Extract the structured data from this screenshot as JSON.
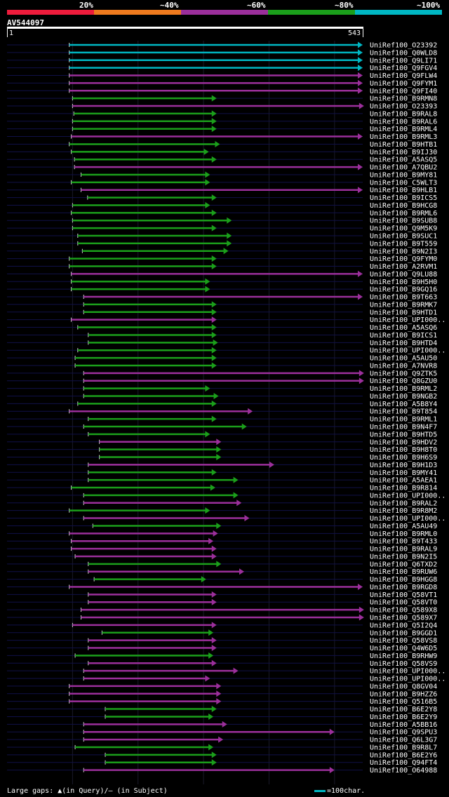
{
  "legend": {
    "labels": [
      "20%",
      "~40%",
      "~60%",
      "~80%",
      "~100%"
    ],
    "colors": [
      "#ee1c3c",
      "#ee7a1e",
      "#9b2f9b",
      "#1b9f1b",
      "#00b7c3"
    ]
  },
  "query": {
    "id": "AV544097",
    "start": "1",
    "end": "543"
  },
  "footer": {
    "gaps_text": "Large gaps: ▲(in Query)/– (in Subject)",
    "scale_text": "=100char."
  },
  "chart_data": {
    "type": "alignment",
    "query_length": 543,
    "hits": [
      {
        "name": "UniRef100_O23392",
        "start": 95,
        "end": 543,
        "cat": "top"
      },
      {
        "name": "UniRef100_Q0WLD8",
        "start": 95,
        "end": 543,
        "cat": "top"
      },
      {
        "name": "UniRef100_Q9LI71",
        "start": 95,
        "end": 543,
        "cat": "top"
      },
      {
        "name": "UniRef100_Q9FGV4",
        "start": 95,
        "end": 543,
        "cat": "top"
      },
      {
        "name": "UniRef100_Q9FLW4",
        "start": 95,
        "end": 543,
        "cat": "mid"
      },
      {
        "name": "UniRef100_Q9FYM1",
        "start": 95,
        "end": 543,
        "cat": "mid"
      },
      {
        "name": "UniRef100_Q9FI40",
        "start": 95,
        "end": 543,
        "cat": "mid"
      },
      {
        "name": "UniRef100_B9RMN8",
        "start": 100,
        "end": 320,
        "cat": "low"
      },
      {
        "name": "UniRef100_O23393",
        "start": 100,
        "end": 545,
        "cat": "mid"
      },
      {
        "name": "UniRef100_B9RAL8",
        "start": 102,
        "end": 320,
        "cat": "low"
      },
      {
        "name": "UniRef100_B9RAL6",
        "start": 100,
        "end": 320,
        "cat": "low"
      },
      {
        "name": "UniRef100_B9RML4",
        "start": 100,
        "end": 320,
        "cat": "low"
      },
      {
        "name": "UniRef100_B9RML3",
        "start": 98,
        "end": 543,
        "cat": "mid"
      },
      {
        "name": "UniRef100_B9HTB1",
        "start": 95,
        "end": 325,
        "cat": "low"
      },
      {
        "name": "UniRef100_B9IJ30",
        "start": 98,
        "end": 308,
        "cat": "low"
      },
      {
        "name": "UniRef100_A5ASQ5",
        "start": 103,
        "end": 320,
        "cat": "low"
      },
      {
        "name": "UniRef100_A7QBU2",
        "start": 103,
        "end": 543,
        "cat": "mid"
      },
      {
        "name": "UniRef100_B9MY81",
        "start": 113,
        "end": 310,
        "cat": "low"
      },
      {
        "name": "UniRef100_C5WLT3",
        "start": 98,
        "end": 310,
        "cat": "low"
      },
      {
        "name": "UniRef100_B9HLB1",
        "start": 113,
        "end": 543,
        "cat": "mid"
      },
      {
        "name": "UniRef100_B9ICS5",
        "start": 123,
        "end": 320,
        "cat": "low"
      },
      {
        "name": "UniRef100_B9HCG8",
        "start": 100,
        "end": 310,
        "cat": "low"
      },
      {
        "name": "UniRef100_B9RML6",
        "start": 98,
        "end": 320,
        "cat": "low"
      },
      {
        "name": "UniRef100_B9SUB8",
        "start": 100,
        "end": 343,
        "cat": "low"
      },
      {
        "name": "UniRef100_Q9M5K9",
        "start": 100,
        "end": 320,
        "cat": "low"
      },
      {
        "name": "UniRef100_B9SUC1",
        "start": 108,
        "end": 343,
        "cat": "low"
      },
      {
        "name": "UniRef100_B9T559",
        "start": 108,
        "end": 343,
        "cat": "low"
      },
      {
        "name": "UniRef100_B9N2I3",
        "start": 115,
        "end": 338,
        "cat": "low"
      },
      {
        "name": "UniRef100_Q9FYM0",
        "start": 95,
        "end": 320,
        "cat": "low"
      },
      {
        "name": "UniRef100_A2RVM1",
        "start": 95,
        "end": 320,
        "cat": "low"
      },
      {
        "name": "UniRef100_Q9LU88",
        "start": 98,
        "end": 543,
        "cat": "mid"
      },
      {
        "name": "UniRef100_B9H5H0",
        "start": 98,
        "end": 310,
        "cat": "low"
      },
      {
        "name": "UniRef100_B9GQ16",
        "start": 98,
        "end": 310,
        "cat": "low"
      },
      {
        "name": "UniRef100_B9T663",
        "start": 117,
        "end": 543,
        "cat": "mid"
      },
      {
        "name": "UniRef100_B9RMK7",
        "start": 117,
        "end": 320,
        "cat": "low"
      },
      {
        "name": "UniRef100_B9HTD1",
        "start": 117,
        "end": 320,
        "cat": "low"
      },
      {
        "name": "UniRef100_UPI000..",
        "start": 98,
        "end": 320,
        "cat": "mid"
      },
      {
        "name": "UniRef100_A5ASQ6",
        "start": 108,
        "end": 320,
        "cat": "low"
      },
      {
        "name": "UniRef100_B9ICS1",
        "start": 124,
        "end": 320,
        "cat": "low"
      },
      {
        "name": "UniRef100_B9HTD4",
        "start": 124,
        "end": 322,
        "cat": "low"
      },
      {
        "name": "UniRef100_UPI000..",
        "start": 108,
        "end": 320,
        "cat": "low"
      },
      {
        "name": "UniRef100_A5AU50",
        "start": 104,
        "end": 320,
        "cat": "low"
      },
      {
        "name": "UniRef100_A7NVR8",
        "start": 104,
        "end": 320,
        "cat": "low"
      },
      {
        "name": "UniRef100_Q9ZTK5",
        "start": 117,
        "end": 545,
        "cat": "mid"
      },
      {
        "name": "UniRef100_Q8GZU0",
        "start": 117,
        "end": 545,
        "cat": "mid"
      },
      {
        "name": "UniRef100_B9RML2",
        "start": 117,
        "end": 310,
        "cat": "low"
      },
      {
        "name": "UniRef100_B9NGB2",
        "start": 117,
        "end": 323,
        "cat": "low"
      },
      {
        "name": "UniRef100_A5B8Y4",
        "start": 108,
        "end": 320,
        "cat": "low"
      },
      {
        "name": "UniRef100_B9T854",
        "start": 95,
        "end": 375,
        "cat": "mid"
      },
      {
        "name": "UniRef100_B9RML1",
        "start": 124,
        "end": 320,
        "cat": "low"
      },
      {
        "name": "UniRef100_B9N4F7",
        "start": 117,
        "end": 366,
        "cat": "low"
      },
      {
        "name": "UniRef100_B9HTD5",
        "start": 124,
        "end": 310,
        "cat": "low"
      },
      {
        "name": "UniRef100_B9HDV2",
        "start": 141,
        "end": 327,
        "cat": "mid"
      },
      {
        "name": "UniRef100_B9H8T0",
        "start": 141,
        "end": 327,
        "cat": "low"
      },
      {
        "name": "UniRef100_B9H6S9",
        "start": 141,
        "end": 327,
        "cat": "low"
      },
      {
        "name": "UniRef100_B9H1D3",
        "start": 124,
        "end": 408,
        "cat": "mid"
      },
      {
        "name": "UniRef100_B9MY41",
        "start": 124,
        "end": 320,
        "cat": "low"
      },
      {
        "name": "UniRef100_A5AEA1",
        "start": 124,
        "end": 353,
        "cat": "low"
      },
      {
        "name": "UniRef100_B9R814",
        "start": 98,
        "end": 318,
        "cat": "low"
      },
      {
        "name": "UniRef100_UPI000..",
        "start": 117,
        "end": 353,
        "cat": "low"
      },
      {
        "name": "UniRef100_B9RAL2",
        "start": 117,
        "end": 358,
        "cat": "mid"
      },
      {
        "name": "UniRef100_B9R8M2",
        "start": 95,
        "end": 310,
        "cat": "low"
      },
      {
        "name": "UniRef100_UPI000..",
        "start": 117,
        "end": 370,
        "cat": "mid"
      },
      {
        "name": "UniRef100_A5AU49",
        "start": 131,
        "end": 327,
        "cat": "low"
      },
      {
        "name": "UniRef100_B9RML0",
        "start": 95,
        "end": 322,
        "cat": "mid"
      },
      {
        "name": "UniRef100_B9T433",
        "start": 98,
        "end": 315,
        "cat": "mid"
      },
      {
        "name": "UniRef100_B9RAL9",
        "start": 98,
        "end": 320,
        "cat": "mid"
      },
      {
        "name": "UniRef100_B9N2I5",
        "start": 104,
        "end": 320,
        "cat": "mid"
      },
      {
        "name": "UniRef100_Q6TXD2",
        "start": 124,
        "end": 327,
        "cat": "low"
      },
      {
        "name": "UniRef100_B9RUW6",
        "start": 124,
        "end": 362,
        "cat": "mid"
      },
      {
        "name": "UniRef100_B9HGG8",
        "start": 133,
        "end": 304,
        "cat": "low"
      },
      {
        "name": "UniRef100_B9RGD8",
        "start": 95,
        "end": 543,
        "cat": "mid"
      },
      {
        "name": "UniRef100_Q58VT1",
        "start": 124,
        "end": 320,
        "cat": "mid"
      },
      {
        "name": "UniRef100_Q58VT0",
        "start": 124,
        "end": 320,
        "cat": "mid"
      },
      {
        "name": "UniRef100_Q589X8",
        "start": 113,
        "end": 545,
        "cat": "mid"
      },
      {
        "name": "UniRef100_Q589X7",
        "start": 113,
        "end": 545,
        "cat": "mid"
      },
      {
        "name": "UniRef100_Q5I2Q4",
        "start": 100,
        "end": 320,
        "cat": "mid"
      },
      {
        "name": "UniRef100_B9GGD1",
        "start": 145,
        "end": 315,
        "cat": "low"
      },
      {
        "name": "UniRef100_Q58VS8",
        "start": 124,
        "end": 320,
        "cat": "mid"
      },
      {
        "name": "UniRef100_Q4W6D5",
        "start": 124,
        "end": 320,
        "cat": "mid"
      },
      {
        "name": "UniRef100_B9RHW9",
        "start": 104,
        "end": 315,
        "cat": "low"
      },
      {
        "name": "UniRef100_Q58VS9",
        "start": 124,
        "end": 320,
        "cat": "mid"
      },
      {
        "name": "UniRef100_UPI000..",
        "start": 117,
        "end": 353,
        "cat": "mid"
      },
      {
        "name": "UniRef100_UPI000..",
        "start": 117,
        "end": 310,
        "cat": "mid"
      },
      {
        "name": "UniRef100_Q8GV04",
        "start": 95,
        "end": 327,
        "cat": "mid"
      },
      {
        "name": "UniRef100_B9HZZ6",
        "start": 95,
        "end": 327,
        "cat": "mid"
      },
      {
        "name": "UniRef100_Q516B5",
        "start": 95,
        "end": 327,
        "cat": "mid"
      },
      {
        "name": "UniRef100_B6E2Y8",
        "start": 150,
        "end": 320,
        "cat": "low"
      },
      {
        "name": "UniRef100_B6E2Y9",
        "start": 150,
        "end": 315,
        "cat": "low"
      },
      {
        "name": "UniRef100_A5BB16",
        "start": 117,
        "end": 336,
        "cat": "mid"
      },
      {
        "name": "UniRef100_Q9SPU3",
        "start": 117,
        "end": 500,
        "cat": "mid"
      },
      {
        "name": "UniRef100_Q6L3G7",
        "start": 117,
        "end": 330,
        "cat": "mid"
      },
      {
        "name": "UniRef100_B9R8L7",
        "start": 104,
        "end": 315,
        "cat": "low"
      },
      {
        "name": "UniRef100_B6E2Y6",
        "start": 150,
        "end": 320,
        "cat": "low"
      },
      {
        "name": "UniRef100_Q94FT4",
        "start": 150,
        "end": 320,
        "cat": "low"
      },
      {
        "name": "UniRef100_O64988",
        "start": 117,
        "end": 500,
        "cat": "mid"
      }
    ]
  }
}
